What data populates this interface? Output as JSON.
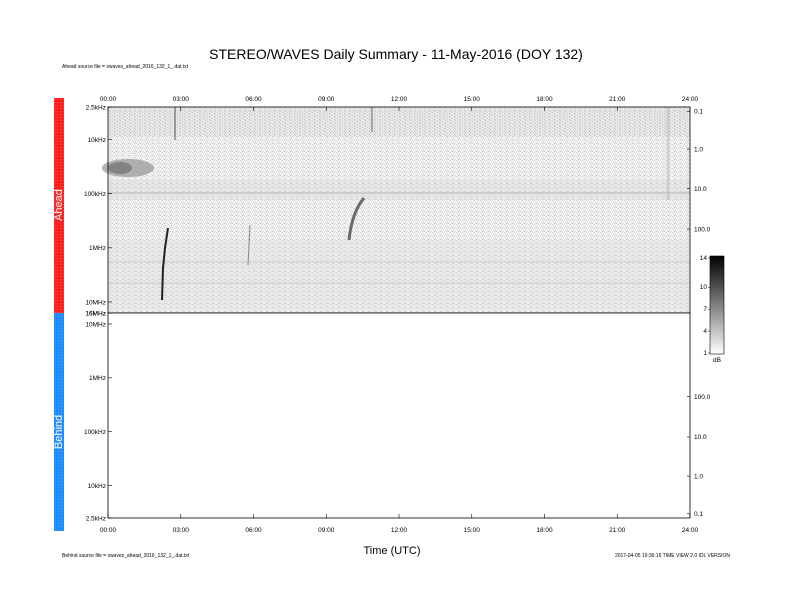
{
  "title": "STEREO/WAVES Daily Summary - 11-May-2016 (DOY 132)",
  "ahead_source": "Ahead source file = swaves_ahead_2016_132_1_.dat.txt",
  "behind_source": "Behind source file = swaves_ahead_2016_132_1_.dat.txt",
  "footer_right": "2017-04-05 19:36:16  TIME VIEW 2.0 IDL VERSION",
  "band_labels": {
    "ahead": "Ahead",
    "behind": "Behind"
  },
  "colors": {
    "ahead": "#ff1e1e",
    "behind": "#1e8cff"
  },
  "colorbar": {
    "ticks": [
      "14",
      "10",
      "7",
      "4",
      "1"
    ],
    "unit": "dB"
  },
  "chart_data": [
    {
      "panel": "Ahead",
      "type": "heatmap",
      "xlabel": "",
      "x_ticks": [
        "00:00",
        "03:00",
        "06:00",
        "09:00",
        "12:00",
        "15:00",
        "18:00",
        "21:00",
        "24:00"
      ],
      "y_ticks": [
        "2.5kHz",
        "10kHz",
        "100kHz",
        "1MHz",
        "10MHz",
        "16MHz"
      ],
      "right_ticks": [
        "0.1",
        "1.0",
        "10.0",
        "100.0"
      ],
      "xlim": [
        "00:00",
        "24:00"
      ],
      "ylim": [
        "2.5kHz",
        "16MHz"
      ],
      "zlim": [
        1,
        14
      ],
      "features": [
        {
          "time": "00:00-02:00",
          "freq": "20kHz-50kHz",
          "intensity_db": 9
        },
        {
          "time": "02:30",
          "freq": "300kHz-10MHz",
          "intensity_db": 14
        },
        {
          "time": "09:30-10:00",
          "freq": "200kHz-2MHz",
          "intensity_db": 12
        }
      ]
    },
    {
      "panel": "Behind",
      "type": "heatmap",
      "xlabel": "Time (UTC)",
      "x_ticks": [
        "00:00",
        "03:00",
        "06:00",
        "09:00",
        "12:00",
        "15:00",
        "18:00",
        "21:00",
        "24:00"
      ],
      "y_ticks": [
        "16MHz",
        "10MHz",
        "1MHz",
        "100kHz",
        "10kHz",
        "2.5kHz"
      ],
      "right_ticks": [
        "100.0",
        "10.0",
        "1.0",
        "0.1"
      ],
      "xlim": [
        "00:00",
        "24:00"
      ],
      "ylim": [
        "16MHz",
        "2.5kHz"
      ],
      "values": []
    }
  ]
}
